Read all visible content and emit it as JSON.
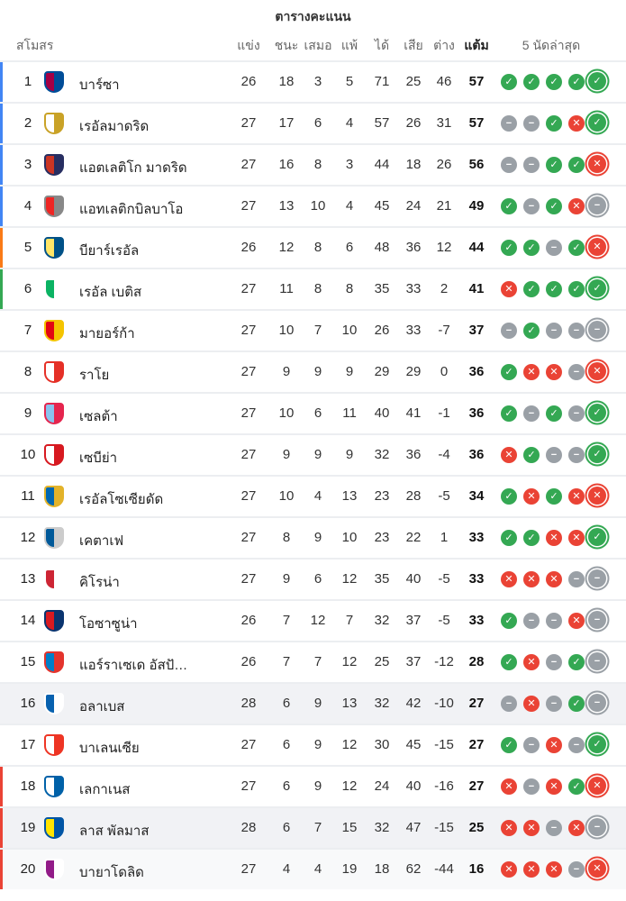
{
  "title": "ตารางคะแนน",
  "headers": {
    "club": "สโมสร",
    "played": "แข่ง",
    "won": "ชนะ",
    "drawn": "เสมอ",
    "lost": "แพ้",
    "gf": "ได้",
    "ga": "เสีย",
    "gd": "ต่าง",
    "pts": "แต้ม",
    "form": "5 นัดล่าสุด"
  },
  "colors": {
    "champions_league": "#4285f4",
    "europa_league": "#fa7b17",
    "conference_league": "#34a853",
    "relegation": "#ea4335",
    "win": "#34a853",
    "loss": "#ea4335",
    "draw": "#9aa0a6"
  },
  "rows": [
    {
      "rank": "1",
      "team": "บาร์ซา",
      "crest": [
        "#a50044",
        "#004d98"
      ],
      "zone": "champions_league",
      "played": "26",
      "won": "18",
      "drawn": "3",
      "lost": "5",
      "gf": "71",
      "ga": "25",
      "gd": "46",
      "pts": "57",
      "form": [
        "W",
        "W",
        "W",
        "W",
        "W"
      ]
    },
    {
      "rank": "2",
      "team": "เรอัลมาดริด",
      "crest": [
        "#ffffff",
        "#c9a227"
      ],
      "zone": "champions_league",
      "played": "27",
      "won": "17",
      "drawn": "6",
      "lost": "4",
      "gf": "57",
      "ga": "26",
      "gd": "31",
      "pts": "57",
      "form": [
        "D",
        "D",
        "W",
        "L",
        "W"
      ]
    },
    {
      "rank": "3",
      "team": "แอตเลติโก มาดริด",
      "crest": [
        "#cb3524",
        "#272e61"
      ],
      "zone": "champions_league",
      "played": "27",
      "won": "16",
      "drawn": "8",
      "lost": "3",
      "gf": "44",
      "ga": "18",
      "gd": "26",
      "pts": "56",
      "form": [
        "D",
        "D",
        "W",
        "W",
        "L"
      ]
    },
    {
      "rank": "4",
      "team": "แอทเลติกบิลบาโอ",
      "crest": [
        "#ee2523",
        "#888888"
      ],
      "zone": "champions_league",
      "played": "27",
      "won": "13",
      "drawn": "10",
      "lost": "4",
      "gf": "45",
      "ga": "24",
      "gd": "21",
      "pts": "49",
      "form": [
        "W",
        "D",
        "W",
        "L",
        "D"
      ]
    },
    {
      "rank": "5",
      "team": "บียาร์เรอัล",
      "crest": [
        "#ffe667",
        "#005187"
      ],
      "zone": "europa_league",
      "played": "26",
      "won": "12",
      "drawn": "8",
      "lost": "6",
      "gf": "48",
      "ga": "36",
      "gd": "12",
      "pts": "44",
      "form": [
        "W",
        "W",
        "D",
        "W",
        "L"
      ]
    },
    {
      "rank": "6",
      "team": "เรอัล เบติส",
      "crest": [
        "#0bb363",
        "#ffffff"
      ],
      "zone": "conference_league",
      "played": "27",
      "won": "11",
      "drawn": "8",
      "lost": "8",
      "gf": "35",
      "ga": "33",
      "gd": "2",
      "pts": "41",
      "form": [
        "L",
        "W",
        "W",
        "W",
        "W"
      ]
    },
    {
      "rank": "7",
      "team": "มายอร์ก้า",
      "crest": [
        "#e20613",
        "#f4c400"
      ],
      "zone": "",
      "played": "27",
      "won": "10",
      "drawn": "7",
      "lost": "10",
      "gf": "26",
      "ga": "33",
      "gd": "-7",
      "pts": "37",
      "form": [
        "D",
        "W",
        "D",
        "D",
        "D"
      ]
    },
    {
      "rank": "8",
      "team": "ราโย",
      "crest": [
        "#ffffff",
        "#e53027"
      ],
      "zone": "",
      "played": "27",
      "won": "9",
      "drawn": "9",
      "lost": "9",
      "gf": "29",
      "ga": "29",
      "gd": "0",
      "pts": "36",
      "form": [
        "W",
        "L",
        "L",
        "D",
        "L"
      ]
    },
    {
      "rank": "9",
      "team": "เซลต้า",
      "crest": [
        "#8ac3ee",
        "#e5254e"
      ],
      "zone": "",
      "played": "27",
      "won": "10",
      "drawn": "6",
      "lost": "11",
      "gf": "40",
      "ga": "41",
      "gd": "-1",
      "pts": "36",
      "form": [
        "W",
        "D",
        "W",
        "D",
        "W"
      ]
    },
    {
      "rank": "10",
      "team": "เซบีย่า",
      "crest": [
        "#ffffff",
        "#d71920"
      ],
      "zone": "",
      "played": "27",
      "won": "9",
      "drawn": "9",
      "lost": "9",
      "gf": "32",
      "ga": "36",
      "gd": "-4",
      "pts": "36",
      "form": [
        "L",
        "W",
        "D",
        "D",
        "W"
      ]
    },
    {
      "rank": "11",
      "team": "เรอัลโซเซียดัด",
      "crest": [
        "#0067b1",
        "#e3b32a"
      ],
      "zone": "",
      "played": "27",
      "won": "10",
      "drawn": "4",
      "lost": "13",
      "gf": "23",
      "ga": "28",
      "gd": "-5",
      "pts": "34",
      "form": [
        "W",
        "L",
        "W",
        "L",
        "L"
      ]
    },
    {
      "rank": "12",
      "team": "เคตาเฟ",
      "crest": [
        "#005999",
        "#cccccc"
      ],
      "zone": "",
      "played": "27",
      "won": "8",
      "drawn": "9",
      "lost": "10",
      "gf": "23",
      "ga": "22",
      "gd": "1",
      "pts": "33",
      "form": [
        "W",
        "W",
        "L",
        "L",
        "W"
      ]
    },
    {
      "rank": "13",
      "team": "คิโรน่า",
      "crest": [
        "#cd2534",
        "#ffffff"
      ],
      "zone": "",
      "played": "27",
      "won": "9",
      "drawn": "6",
      "lost": "12",
      "gf": "35",
      "ga": "40",
      "gd": "-5",
      "pts": "33",
      "form": [
        "L",
        "L",
        "L",
        "D",
        "D"
      ]
    },
    {
      "rank": "14",
      "team": "โอซาซูน่า",
      "crest": [
        "#d91a21",
        "#0a346f"
      ],
      "zone": "",
      "played": "26",
      "won": "7",
      "drawn": "12",
      "lost": "7",
      "gf": "32",
      "ga": "37",
      "gd": "-5",
      "pts": "33",
      "form": [
        "W",
        "D",
        "D",
        "L",
        "D"
      ]
    },
    {
      "rank": "15",
      "team": "แอร์ราเซเด อัสปันญ็อล",
      "crest": [
        "#007fc8",
        "#e4342d"
      ],
      "zone": "",
      "played": "26",
      "won": "7",
      "drawn": "7",
      "lost": "12",
      "gf": "25",
      "ga": "37",
      "gd": "-12",
      "pts": "28",
      "form": [
        "W",
        "L",
        "D",
        "W",
        "D"
      ]
    },
    {
      "rank": "16",
      "team": "อลาเบส",
      "crest": [
        "#0761af",
        "#ffffff"
      ],
      "zone": "",
      "highlight": true,
      "played": "28",
      "won": "6",
      "drawn": "9",
      "lost": "13",
      "gf": "32",
      "ga": "42",
      "gd": "-10",
      "pts": "27",
      "form": [
        "D",
        "L",
        "D",
        "W",
        "D"
      ]
    },
    {
      "rank": "17",
      "team": "บาเลนเซีย",
      "crest": [
        "#ffffff",
        "#ee3524"
      ],
      "zone": "",
      "played": "27",
      "won": "6",
      "drawn": "9",
      "lost": "12",
      "gf": "30",
      "ga": "45",
      "gd": "-15",
      "pts": "27",
      "form": [
        "W",
        "D",
        "L",
        "D",
        "W"
      ]
    },
    {
      "rank": "18",
      "team": "เลกาเนส",
      "crest": [
        "#ffffff",
        "#0061a8"
      ],
      "zone": "relegation",
      "played": "27",
      "won": "6",
      "drawn": "9",
      "lost": "12",
      "gf": "24",
      "ga": "40",
      "gd": "-16",
      "pts": "27",
      "form": [
        "L",
        "D",
        "L",
        "W",
        "L"
      ]
    },
    {
      "rank": "19",
      "team": "ลาส พัลมาส",
      "crest": [
        "#ffe400",
        "#0055a5"
      ],
      "zone": "relegation",
      "highlight": true,
      "played": "28",
      "won": "6",
      "drawn": "7",
      "lost": "15",
      "gf": "32",
      "ga": "47",
      "gd": "-15",
      "pts": "25",
      "form": [
        "L",
        "L",
        "D",
        "L",
        "D"
      ]
    },
    {
      "rank": "20",
      "team": "บายาโดลิด",
      "crest": [
        "#921b88",
        "#ffffff"
      ],
      "zone": "relegation",
      "highlight2": true,
      "played": "27",
      "won": "4",
      "drawn": "4",
      "lost": "19",
      "gf": "18",
      "ga": "62",
      "gd": "-44",
      "pts": "16",
      "form": [
        "L",
        "L",
        "L",
        "D",
        "L"
      ]
    }
  ]
}
